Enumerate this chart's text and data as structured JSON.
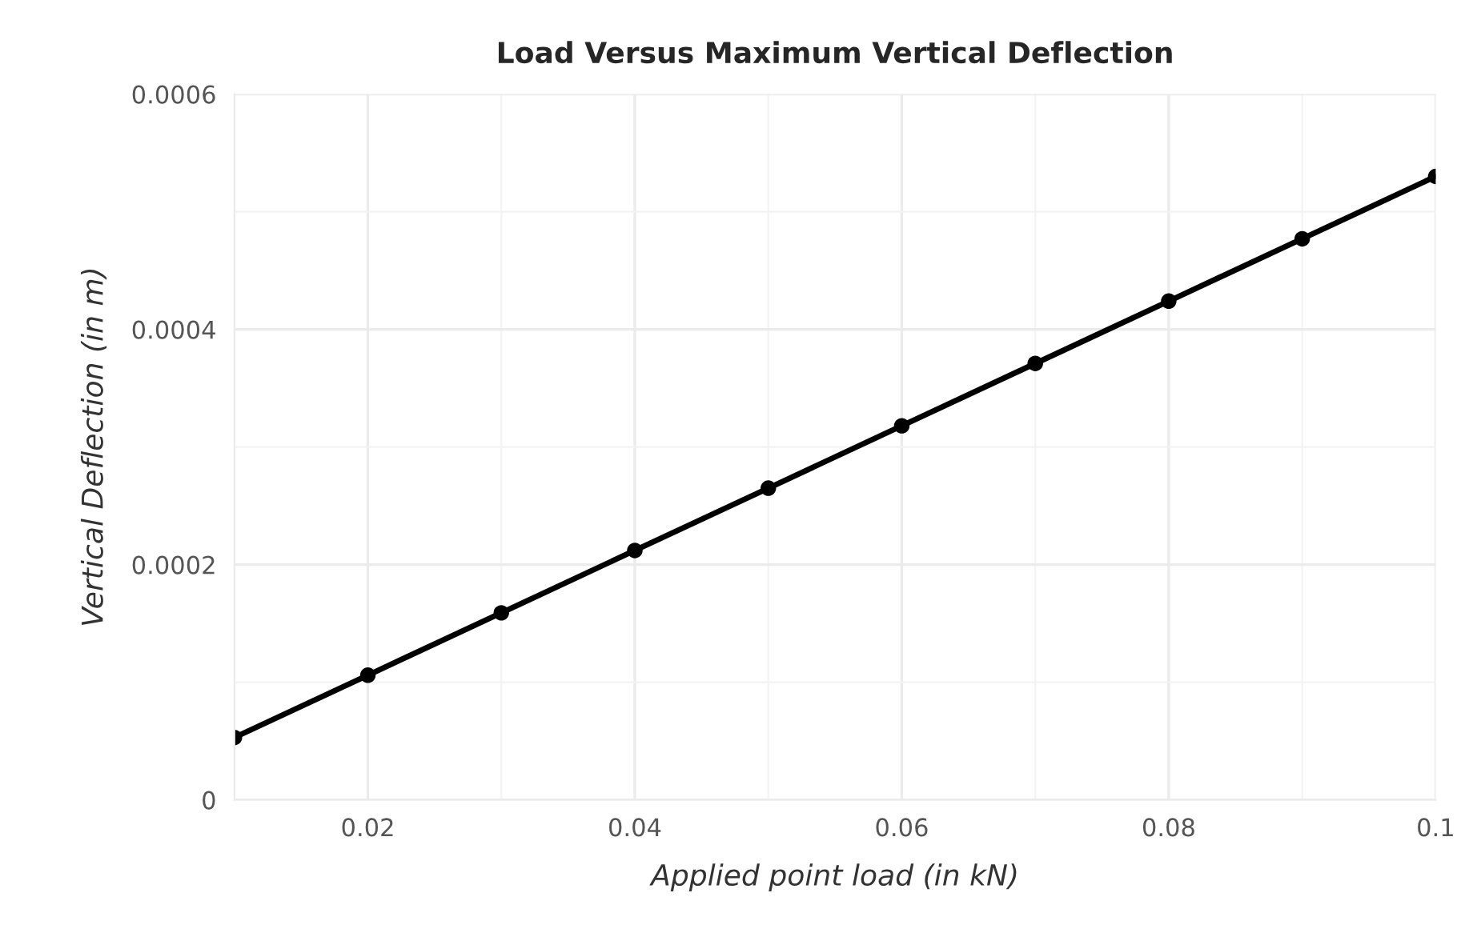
{
  "chart_data": {
    "type": "line",
    "title": "Load Versus Maximum Vertical Deflection",
    "xlabel": "Applied point load (in kN)",
    "ylabel": "Vertical Deflection (in m)",
    "x": [
      0.01,
      0.02,
      0.03,
      0.04,
      0.05,
      0.06,
      0.07,
      0.08,
      0.09,
      0.1
    ],
    "series": [
      {
        "color": "#000000",
        "values": [
          5.3e-05,
          0.000106,
          0.000159,
          0.000212,
          0.000265,
          0.000318,
          0.000371,
          0.000424,
          0.000477,
          0.00053
        ]
      }
    ],
    "xlim": [
      0.01,
      0.1
    ],
    "xticks": [
      0.02,
      0.04,
      0.06,
      0.08,
      0.1
    ],
    "ylim": [
      0,
      0.0006
    ],
    "yticks": [
      0,
      0.0002,
      0.0004,
      0.0006
    ],
    "grid": true,
    "marker": "circle",
    "line_style": "solid"
  }
}
